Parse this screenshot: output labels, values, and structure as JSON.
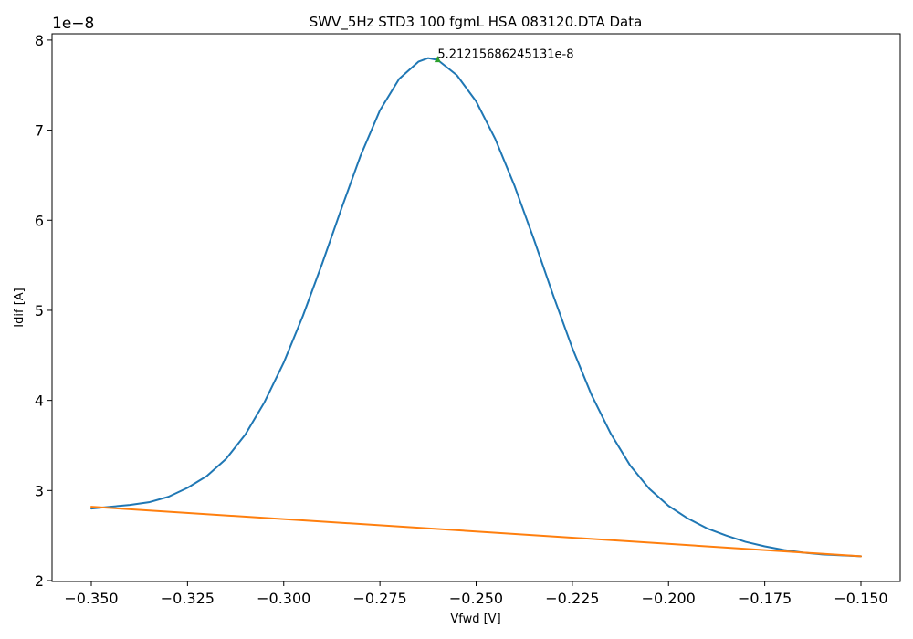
{
  "chart_data": {
    "type": "line",
    "title": "SWV_5Hz STD3 100 fgmL HSA 083120.DTA Data",
    "xlabel": "Vfwd [V]",
    "ylabel": "Idif [A]",
    "y_offset_label": "1e−8",
    "xlim": [
      -0.3602,
      -0.1398
    ],
    "ylim": [
      1.99,
      8.07
    ],
    "x_ticks": [
      -0.35,
      -0.325,
      -0.3,
      -0.275,
      -0.25,
      -0.225,
      -0.2,
      -0.175,
      -0.15
    ],
    "x_tick_labels": [
      "−0.350",
      "−0.325",
      "−0.300",
      "−0.275",
      "−0.250",
      "−0.225",
      "−0.200",
      "−0.175",
      "−0.150"
    ],
    "y_ticks": [
      2,
      3,
      4,
      5,
      6,
      7,
      8
    ],
    "y_tick_labels": [
      "2",
      "3",
      "4",
      "5",
      "6",
      "7",
      "8"
    ],
    "grid": false,
    "legend": "none",
    "series": [
      {
        "color": "#1f77b4",
        "x": [
          -0.35,
          -0.345,
          -0.34,
          -0.335,
          -0.33,
          -0.325,
          -0.32,
          -0.315,
          -0.31,
          -0.305,
          -0.3,
          -0.295,
          -0.29,
          -0.285,
          -0.28,
          -0.275,
          -0.27,
          -0.265,
          -0.2625,
          -0.26,
          -0.255,
          -0.25,
          -0.245,
          -0.24,
          -0.235,
          -0.23,
          -0.225,
          -0.22,
          -0.215,
          -0.21,
          -0.205,
          -0.2,
          -0.195,
          -0.19,
          -0.185,
          -0.18,
          -0.175,
          -0.17,
          -0.165,
          -0.16,
          -0.155,
          -0.15
        ],
        "y": [
          2.8,
          2.82,
          2.84,
          2.87,
          2.93,
          3.03,
          3.16,
          3.35,
          3.62,
          3.98,
          4.42,
          4.94,
          5.52,
          6.13,
          6.72,
          7.22,
          7.57,
          7.76,
          7.8,
          7.78,
          7.61,
          7.32,
          6.9,
          6.38,
          5.79,
          5.17,
          4.58,
          4.06,
          3.63,
          3.28,
          3.02,
          2.83,
          2.69,
          2.58,
          2.5,
          2.43,
          2.38,
          2.34,
          2.31,
          2.29,
          2.28,
          2.27
        ]
      },
      {
        "color": "#ff7f0e",
        "x": [
          -0.35,
          -0.15
        ],
        "y": [
          2.82,
          2.27
        ]
      }
    ],
    "peak_marker": {
      "x": -0.26,
      "y": 7.79,
      "color": "#2ca02c",
      "label": "5.21215686245131e-8"
    }
  }
}
